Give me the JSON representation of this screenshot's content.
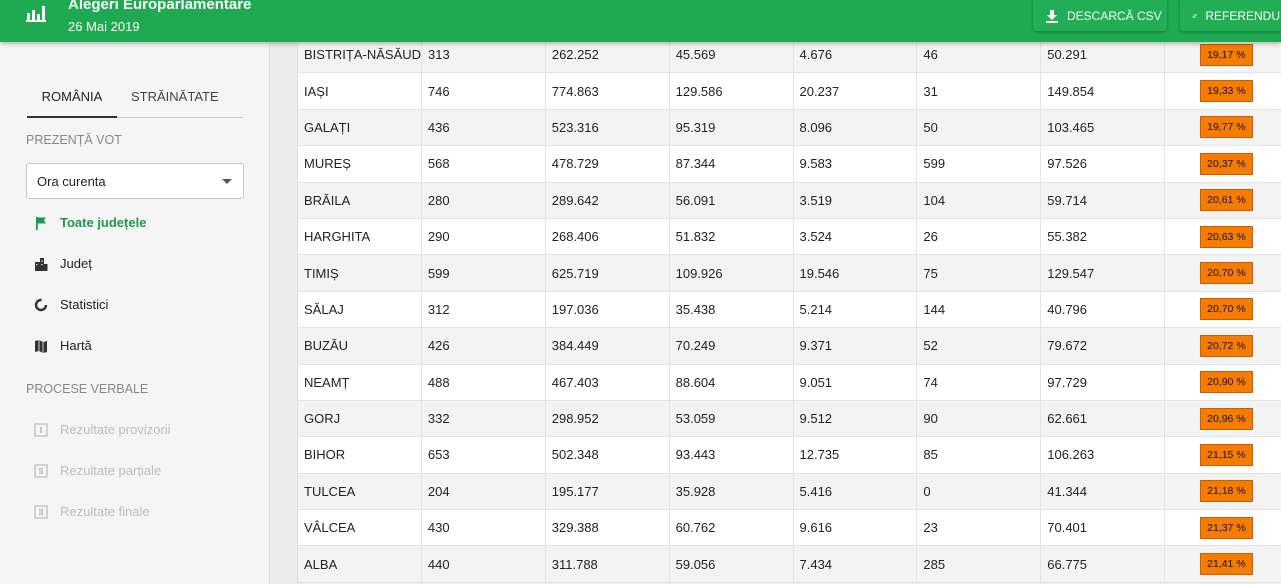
{
  "header": {
    "title": "Alegeri Europarlamentare",
    "date": "26 Mai 2019",
    "download_csv": "DESCARCĂ CSV",
    "referendum": "REFERENDUM",
    "accent_color": "#1faa51"
  },
  "sidebar": {
    "tabs": [
      "ROMÂNIA",
      "STRĂINĂTATE"
    ],
    "section_vote": "PREZENȚĂ VOT",
    "select_value": "Ora curenta",
    "nav": [
      {
        "label": "Toate județele",
        "icon": "flag-icon"
      },
      {
        "label": "Județ",
        "icon": "city-icon"
      },
      {
        "label": "Statistici",
        "icon": "donut-icon"
      },
      {
        "label": "Hartă",
        "icon": "map-icon"
      }
    ],
    "section_pv": "PROCESE VERBALE",
    "pv_items": [
      {
        "label": "Rezultate provizorii",
        "icon": "document-1-icon"
      },
      {
        "label": "Rezultate parțiale",
        "icon": "document-2-icon"
      },
      {
        "label": "Rezultate finale",
        "icon": "document-3-icon"
      }
    ]
  },
  "table": {
    "rows": [
      [
        "BISTRIȚA-NĂSĂUD",
        "313",
        "262.252",
        "45.569",
        "4.676",
        "46",
        "50.291",
        "19,17 %"
      ],
      [
        "IAȘI",
        "746",
        "774.863",
        "129.586",
        "20.237",
        "31",
        "149.854",
        "19,33 %"
      ],
      [
        "GALAȚI",
        "436",
        "523.316",
        "95.319",
        "8.096",
        "50",
        "103.465",
        "19,77 %"
      ],
      [
        "MUREȘ",
        "568",
        "478.729",
        "87.344",
        "9.583",
        "599",
        "97.526",
        "20,37 %"
      ],
      [
        "BRĂILA",
        "280",
        "289.642",
        "56.091",
        "3.519",
        "104",
        "59.714",
        "20,61 %"
      ],
      [
        "HARGHITA",
        "290",
        "268.406",
        "51.832",
        "3.524",
        "26",
        "55.382",
        "20,63 %"
      ],
      [
        "TIMIȘ",
        "599",
        "625.719",
        "109.926",
        "19.546",
        "75",
        "129.547",
        "20,70 %"
      ],
      [
        "SĂLAJ",
        "312",
        "197.036",
        "35.438",
        "5.214",
        "144",
        "40.796",
        "20,70 %"
      ],
      [
        "BUZĂU",
        "426",
        "384.449",
        "70.249",
        "9.371",
        "52",
        "79.672",
        "20,72 %"
      ],
      [
        "NEAMȚ",
        "488",
        "467.403",
        "88.604",
        "9.051",
        "74",
        "97.729",
        "20,90 %"
      ],
      [
        "GORJ",
        "332",
        "298.952",
        "53.059",
        "9.512",
        "90",
        "62.661",
        "20,96 %"
      ],
      [
        "BIHOR",
        "653",
        "502.348",
        "93.443",
        "12.735",
        "85",
        "106.263",
        "21,15 %"
      ],
      [
        "TULCEA",
        "204",
        "195.177",
        "35.928",
        "5.416",
        "0",
        "41.344",
        "21,18 %"
      ],
      [
        "VÂLCEA",
        "430",
        "329.388",
        "60.762",
        "9.616",
        "23",
        "70.401",
        "21,37 %"
      ],
      [
        "ALBA",
        "440",
        "311.788",
        "59.056",
        "7.434",
        "285",
        "66.775",
        "21,41 %"
      ]
    ],
    "badge_color": "#f57c00"
  }
}
